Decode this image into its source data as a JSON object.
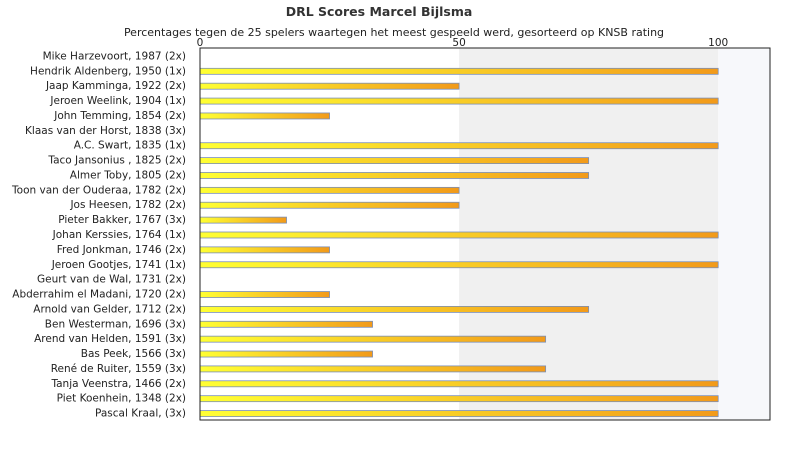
{
  "chart_data": {
    "type": "bar",
    "orientation": "horizontal",
    "title": "DRL Scores Marcel Bijlsma",
    "subtitle": "Percentages tegen de 25 spelers waartegen het meest gespeeld werd, gesorteerd op KNSB rating",
    "xlim": [
      0,
      110
    ],
    "xticks": [
      0,
      50,
      100
    ],
    "tick_labels": [
      "0",
      "50",
      "100"
    ],
    "x_axis_position": "top",
    "grid": "alternating vertical bands",
    "categories": [
      "Mike Harzevoort, 1987 (2x)",
      "Hendrik Aldenberg, 1950 (1x)",
      "Jaap Kamminga, 1922 (2x)",
      "Jeroen Weelink, 1904 (1x)",
      "John Temming, 1854 (2x)",
      "Klaas van der Horst, 1838 (3x)",
      "A.C. Swart, 1835 (1x)",
      "Taco Jansonius , 1825 (2x)",
      "Almer Toby, 1805 (2x)",
      "Toon van der Ouderaa, 1782 (2x)",
      "Jos Heesen, 1782 (2x)",
      "Pieter Bakker, 1767 (3x)",
      "Johan Kerssies, 1764 (1x)",
      "Fred Jonkman, 1746 (2x)",
      "Jeroen Gootjes, 1741 (1x)",
      "Geurt van de Wal, 1731 (2x)",
      "Abderrahim el Madani, 1720 (2x)",
      "Arnold van Gelder, 1712 (2x)",
      "Ben Westerman, 1696 (3x)",
      "Arend van Helden, 1591 (3x)",
      "Bas Peek, 1566 (3x)",
      "René de Ruiter, 1559 (3x)",
      "Tanja Veenstra, 1466 (2x)",
      "Piet Koenhein, 1348 (2x)",
      "Pascal Kraal,  (3x)"
    ],
    "values": [
      0,
      100,
      50,
      100,
      25,
      0,
      100,
      75,
      75,
      50,
      50,
      16.7,
      100,
      25,
      100,
      0,
      25,
      75,
      33.3,
      66.7,
      33.3,
      66.7,
      100,
      100,
      100
    ],
    "colors": {
      "bar_left": "#ffff33",
      "bar_right": "#f29a1a",
      "bar_border": "#7a8fb8",
      "plot_border": "#222222",
      "band_a": "#ffffff",
      "band_b": "#f0f0f0",
      "band_c": "#f7f8fb"
    }
  }
}
